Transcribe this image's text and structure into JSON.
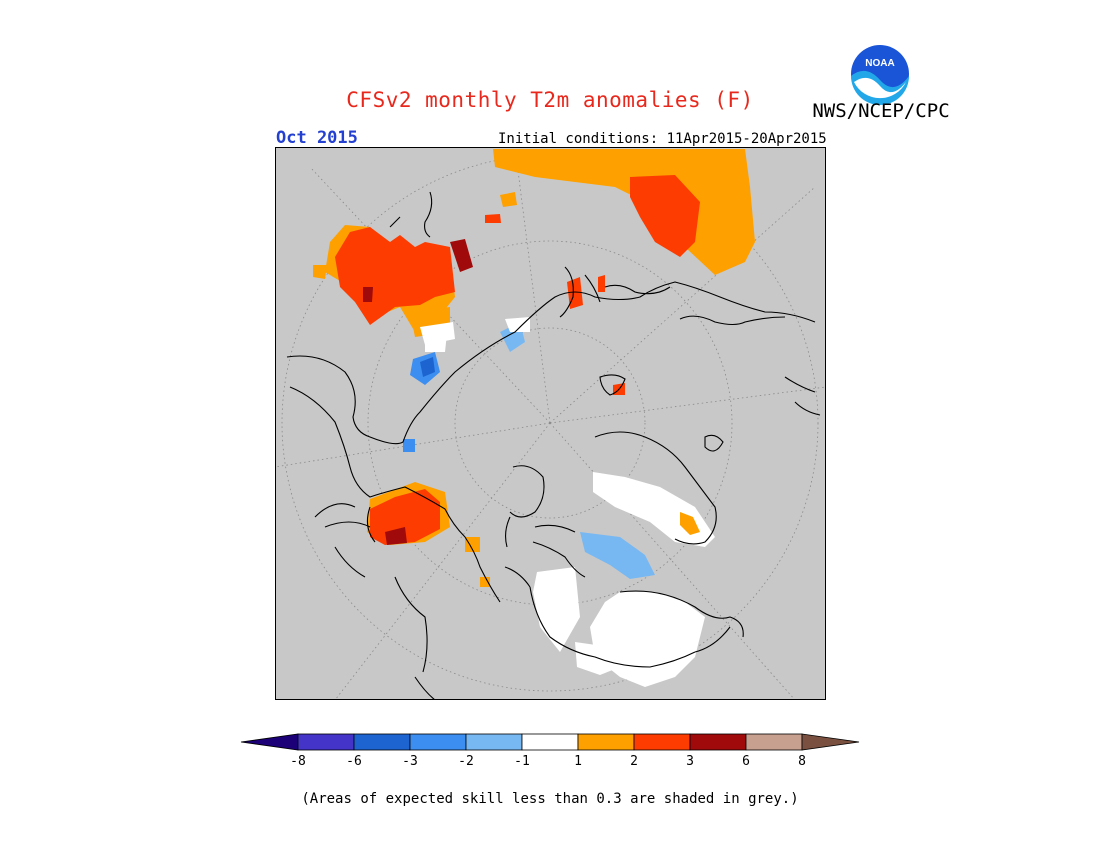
{
  "header": {
    "title": "CFSv2 monthly T2m anomalies (F)",
    "agency": "NWS/NCEP/CPC",
    "logo_text": "NOAA",
    "period": "Oct 2015",
    "initial_conditions": "Initial conditions: 11Apr2015-20Apr2015"
  },
  "legend": {
    "colors": [
      "#1b0077",
      "#4434c8",
      "#1d64d0",
      "#3c8ef0",
      "#78b8f2",
      "#ffffff",
      "#fda000",
      "#fc3c00",
      "#a00a0a",
      "#c8a090",
      "#7a5040"
    ],
    "labels": [
      "-8",
      "-6",
      "-3",
      "-2",
      "-1",
      "1",
      "2",
      "3",
      "6",
      "8"
    ]
  },
  "map": {
    "background_color": "#c8c8c8",
    "grid_style": "dotted"
  },
  "footer": {
    "note": "(Areas of expected skill less than 0.3 are shaded in grey.)"
  }
}
